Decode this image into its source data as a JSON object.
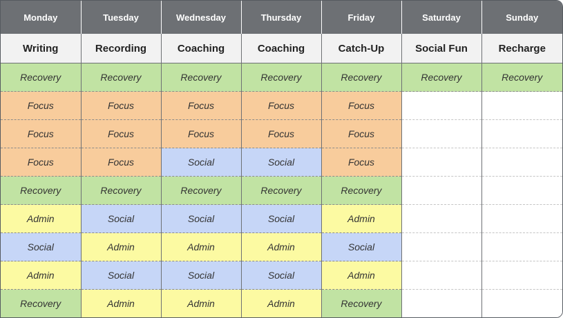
{
  "colors": {
    "Recovery": "#c1e3a3",
    "Focus": "#f8cc9c",
    "Social": "#c6d6f7",
    "Admin": "#fcfaa2",
    "empty": "#ffffff",
    "header": "#6d7074",
    "theme_row": "#f2f2f2"
  },
  "days": [
    "Monday",
    "Tuesday",
    "Wednesday",
    "Thursday",
    "Friday",
    "Saturday",
    "Sunday"
  ],
  "themes": [
    "Writing",
    "Recording",
    "Coaching",
    "Coaching",
    "Catch-Up",
    "Social Fun",
    "Recharge"
  ],
  "rows": [
    [
      "Recovery",
      "Recovery",
      "Recovery",
      "Recovery",
      "Recovery",
      "Recovery",
      "Recovery"
    ],
    [
      "Focus",
      "Focus",
      "Focus",
      "Focus",
      "Focus",
      "",
      ""
    ],
    [
      "Focus",
      "Focus",
      "Focus",
      "Focus",
      "Focus",
      "",
      ""
    ],
    [
      "Focus",
      "Focus",
      "Social",
      "Social",
      "Focus",
      "",
      ""
    ],
    [
      "Recovery",
      "Recovery",
      "Recovery",
      "Recovery",
      "Recovery",
      "",
      ""
    ],
    [
      "Admin",
      "Social",
      "Social",
      "Social",
      "Admin",
      "",
      ""
    ],
    [
      "Social",
      "Admin",
      "Admin",
      "Admin",
      "Social",
      "",
      ""
    ],
    [
      "Admin",
      "Social",
      "Social",
      "Social",
      "Admin",
      "",
      ""
    ],
    [
      "Recovery",
      "Admin",
      "Admin",
      "Admin",
      "Recovery",
      "",
      ""
    ]
  ]
}
